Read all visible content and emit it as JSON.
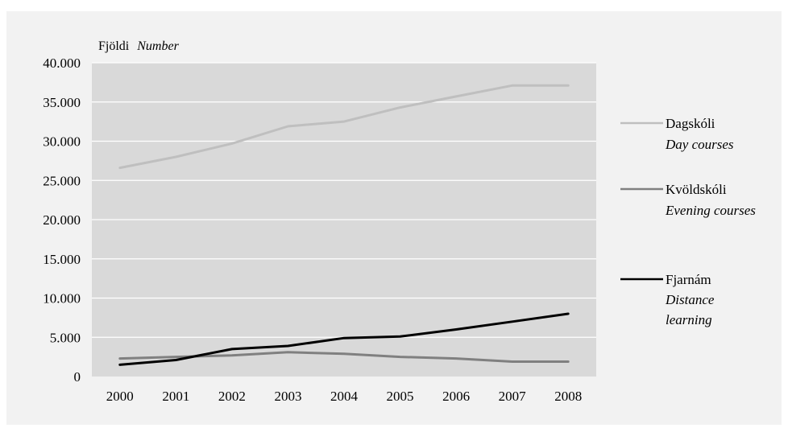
{
  "chart_data": {
    "type": "line",
    "ylabel_main": "Fjöldi",
    "ylabel_sub": "Number",
    "categories": [
      "2000",
      "2001",
      "2002",
      "2003",
      "2004",
      "2005",
      "2006",
      "2007",
      "2008"
    ],
    "ylim": [
      0,
      40000
    ],
    "yticks": [
      0,
      5000,
      10000,
      15000,
      20000,
      25000,
      30000,
      35000,
      40000
    ],
    "ytick_labels": [
      "0",
      "5.000",
      "10.000",
      "15.000",
      "20.000",
      "25.000",
      "30.000",
      "35.000",
      "40.000"
    ],
    "grid": true,
    "legend_position": "right",
    "series": [
      {
        "name": "Dagskóli",
        "name_sub": "Day courses",
        "color": "#bfbfbf",
        "values": [
          26600,
          28000,
          29700,
          31900,
          32500,
          34300,
          35700,
          37100,
          37100
        ]
      },
      {
        "name": "Kvöldskóli",
        "name_sub": "Evening courses",
        "color": "#808080",
        "values": [
          2300,
          2500,
          2700,
          3100,
          2900,
          2500,
          2300,
          1900,
          1900
        ]
      },
      {
        "name": "Fjarnám",
        "name_sub": "Distance learning",
        "name_sub_lines": [
          "Distance",
          "learning"
        ],
        "color": "#000000",
        "values": [
          1500,
          2100,
          3500,
          3900,
          4900,
          5100,
          6000,
          7000,
          8000
        ]
      }
    ]
  }
}
